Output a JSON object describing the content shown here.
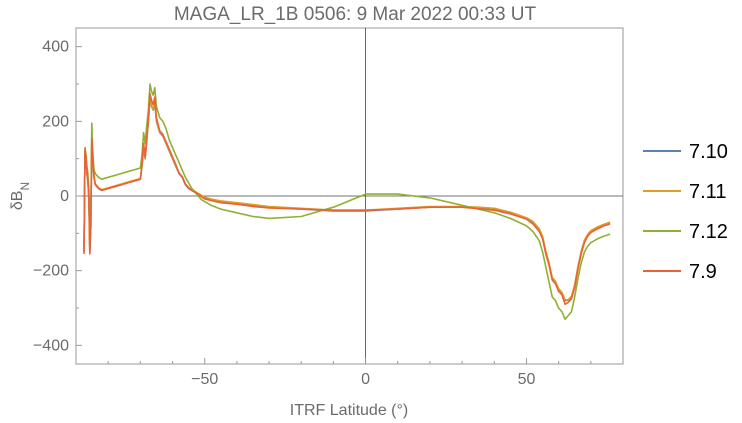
{
  "chart_data": {
    "type": "line",
    "title": "MAGA_LR_1B 0506: 9 Mar 2022 00:33 UT",
    "xlabel": "ITRF Latitude (°)",
    "ylabel": "δB",
    "ylabel_sub": "N",
    "xlim": [
      -90,
      80
    ],
    "ylim": [
      -450,
      450
    ],
    "xticks": [
      -50,
      0,
      50
    ],
    "yticks": [
      -400,
      -200,
      0,
      200,
      400
    ],
    "xtick_labels": [
      "−50",
      "0",
      "50"
    ],
    "ytick_labels": [
      "−400",
      "−200",
      "0",
      "200",
      "400"
    ],
    "grid": false,
    "legend_position": "right",
    "series": [
      {
        "name": "7.10",
        "color": "#5e81b5",
        "x": [
          -87.5,
          -87.2,
          -86.9,
          -86.6,
          -86.3,
          -86,
          -85.7,
          -85.4,
          -85.1,
          -84.8,
          -84.4,
          -84,
          -83,
          -82,
          -80,
          -78,
          -76,
          -74,
          -72,
          -70,
          -69.5,
          -69,
          -68.5,
          -68,
          -67.5,
          -67,
          -66.5,
          -66,
          -65.5,
          -65,
          -64,
          -63,
          -62,
          -61,
          -60,
          -59,
          -58,
          -57,
          -56,
          -55,
          -54,
          -53,
          -52,
          -51,
          -50,
          -48,
          -45,
          -40,
          -35,
          -30,
          -20,
          -10,
          0,
          10,
          20,
          30,
          35,
          40,
          45,
          50,
          52,
          54,
          55,
          56,
          57,
          58,
          59,
          60,
          61,
          62,
          63,
          64,
          65,
          66,
          67,
          68,
          69,
          70,
          72,
          74,
          76
        ],
        "y": [
          -150,
          120,
          100,
          60,
          40,
          -10,
          -150,
          -80,
          150,
          100,
          50,
          30,
          20,
          15,
          20,
          25,
          30,
          35,
          40,
          45,
          80,
          130,
          100,
          150,
          200,
          260,
          240,
          230,
          250,
          200,
          170,
          160,
          140,
          120,
          100,
          80,
          60,
          50,
          30,
          20,
          15,
          10,
          5,
          0,
          -5,
          -10,
          -15,
          -20,
          -25,
          -30,
          -35,
          -40,
          -40,
          -35,
          -30,
          -30,
          -32,
          -35,
          -45,
          -60,
          -70,
          -90,
          -110,
          -150,
          -180,
          -220,
          -230,
          -250,
          -260,
          -280,
          -280,
          -270,
          -240,
          -190,
          -150,
          -120,
          -105,
          -95,
          -85,
          -78,
          -72
        ]
      },
      {
        "name": "7.11",
        "color": "#e19c24",
        "x": [
          -87.5,
          -87.2,
          -86.9,
          -86.6,
          -86.3,
          -86,
          -85.7,
          -85.4,
          -85.1,
          -84.8,
          -84.4,
          -84,
          -83,
          -82,
          -80,
          -78,
          -76,
          -74,
          -72,
          -70,
          -69.5,
          -69,
          -68.5,
          -68,
          -67.5,
          -67,
          -66.5,
          -66,
          -65.5,
          -65,
          -64,
          -63,
          -62,
          -61,
          -60,
          -59,
          -58,
          -57,
          -56,
          -55,
          -54,
          -53,
          -52,
          -51,
          -50,
          -48,
          -45,
          -40,
          -35,
          -30,
          -20,
          -10,
          0,
          10,
          20,
          30,
          35,
          40,
          45,
          50,
          52,
          54,
          55,
          56,
          57,
          58,
          59,
          60,
          61,
          62,
          63,
          64,
          65,
          66,
          67,
          68,
          69,
          70,
          72,
          74,
          76
        ],
        "y": [
          -148,
          122,
          102,
          62,
          42,
          -8,
          -148,
          -78,
          152,
          102,
          52,
          32,
          22,
          17,
          22,
          27,
          32,
          37,
          42,
          47,
          82,
          132,
          102,
          152,
          202,
          262,
          242,
          232,
          252,
          202,
          172,
          162,
          142,
          122,
          102,
          82,
          62,
          52,
          32,
          22,
          17,
          12,
          7,
          2,
          -3,
          -8,
          -13,
          -18,
          -23,
          -28,
          -33,
          -38,
          -38,
          -33,
          -28,
          -28,
          -30,
          -33,
          -43,
          -58,
          -68,
          -88,
          -108,
          -148,
          -178,
          -218,
          -228,
          -248,
          -258,
          -278,
          -278,
          -268,
          -238,
          -188,
          -148,
          -118,
          -103,
          -93,
          -83,
          -76,
          -70
        ]
      },
      {
        "name": "7.12",
        "color": "#8fb032",
        "x": [
          -87.5,
          -87.2,
          -86.9,
          -86.6,
          -86.3,
          -86,
          -85.7,
          -85.4,
          -85.1,
          -84.8,
          -84.4,
          -84,
          -83,
          -82,
          -80,
          -78,
          -76,
          -74,
          -72,
          -70,
          -69.5,
          -69,
          -68.5,
          -68,
          -67.5,
          -67,
          -66.5,
          -66,
          -65.5,
          -65,
          -64,
          -63,
          -62,
          -61,
          -60,
          -59,
          -58,
          -57,
          -56,
          -55,
          -54,
          -53,
          -52,
          -51,
          -50,
          -48,
          -45,
          -40,
          -35,
          -30,
          -20,
          -10,
          0,
          10,
          20,
          30,
          35,
          40,
          45,
          50,
          52,
          54,
          55,
          56,
          57,
          58,
          59,
          60,
          61,
          62,
          63,
          64,
          65,
          66,
          67,
          68,
          69,
          70,
          72,
          74,
          76
        ],
        "y": [
          -140,
          130,
          110,
          80,
          60,
          10,
          -140,
          -60,
          195,
          120,
          70,
          60,
          50,
          45,
          50,
          55,
          60,
          65,
          70,
          75,
          110,
          170,
          140,
          190,
          230,
          300,
          280,
          270,
          290,
          240,
          210,
          200,
          180,
          150,
          130,
          110,
          90,
          70,
          50,
          35,
          20,
          10,
          0,
          -10,
          -15,
          -25,
          -35,
          -45,
          -55,
          -60,
          -55,
          -30,
          5,
          5,
          -5,
          -25,
          -35,
          -45,
          -60,
          -80,
          -95,
          -120,
          -150,
          -190,
          -230,
          -270,
          -280,
          -300,
          -310,
          -330,
          -320,
          -310,
          -270,
          -220,
          -180,
          -150,
          -135,
          -125,
          -115,
          -108,
          -102
        ]
      },
      {
        "name": "7.9",
        "color": "#eb6235",
        "x": [
          -87.5,
          -87.2,
          -86.9,
          -86.6,
          -86.3,
          -86,
          -85.7,
          -85.4,
          -85.1,
          -84.8,
          -84.4,
          -84,
          -83,
          -82,
          -80,
          -78,
          -76,
          -74,
          -72,
          -70,
          -69.5,
          -69,
          -68.5,
          -68,
          -67.5,
          -67,
          -66.5,
          -66,
          -65.5,
          -65,
          -64,
          -63,
          -62,
          -61,
          -60,
          -59,
          -58,
          -57,
          -56,
          -55,
          -54,
          -53,
          -52,
          -51,
          -50,
          -48,
          -45,
          -40,
          -35,
          -30,
          -20,
          -10,
          0,
          10,
          20,
          30,
          35,
          40,
          45,
          50,
          52,
          54,
          55,
          56,
          57,
          58,
          59,
          60,
          61,
          62,
          63,
          64,
          65,
          66,
          67,
          68,
          69,
          70,
          72,
          74,
          76
        ],
        "y": [
          -155,
          125,
          105,
          62,
          42,
          -5,
          -155,
          -82,
          155,
          105,
          52,
          32,
          22,
          15,
          20,
          25,
          30,
          35,
          40,
          45,
          85,
          140,
          105,
          155,
          210,
          275,
          255,
          245,
          265,
          210,
          175,
          165,
          145,
          125,
          105,
          85,
          62,
          52,
          32,
          22,
          15,
          10,
          5,
          -2,
          -8,
          -12,
          -18,
          -22,
          -28,
          -32,
          -35,
          -38,
          -38,
          -35,
          -30,
          -30,
          -34,
          -38,
          -48,
          -62,
          -75,
          -95,
          -115,
          -155,
          -185,
          -225,
          -235,
          -255,
          -265,
          -290,
          -285,
          -275,
          -245,
          -195,
          -155,
          -125,
          -108,
          -98,
          -88,
          -80,
          -75
        ]
      }
    ]
  }
}
